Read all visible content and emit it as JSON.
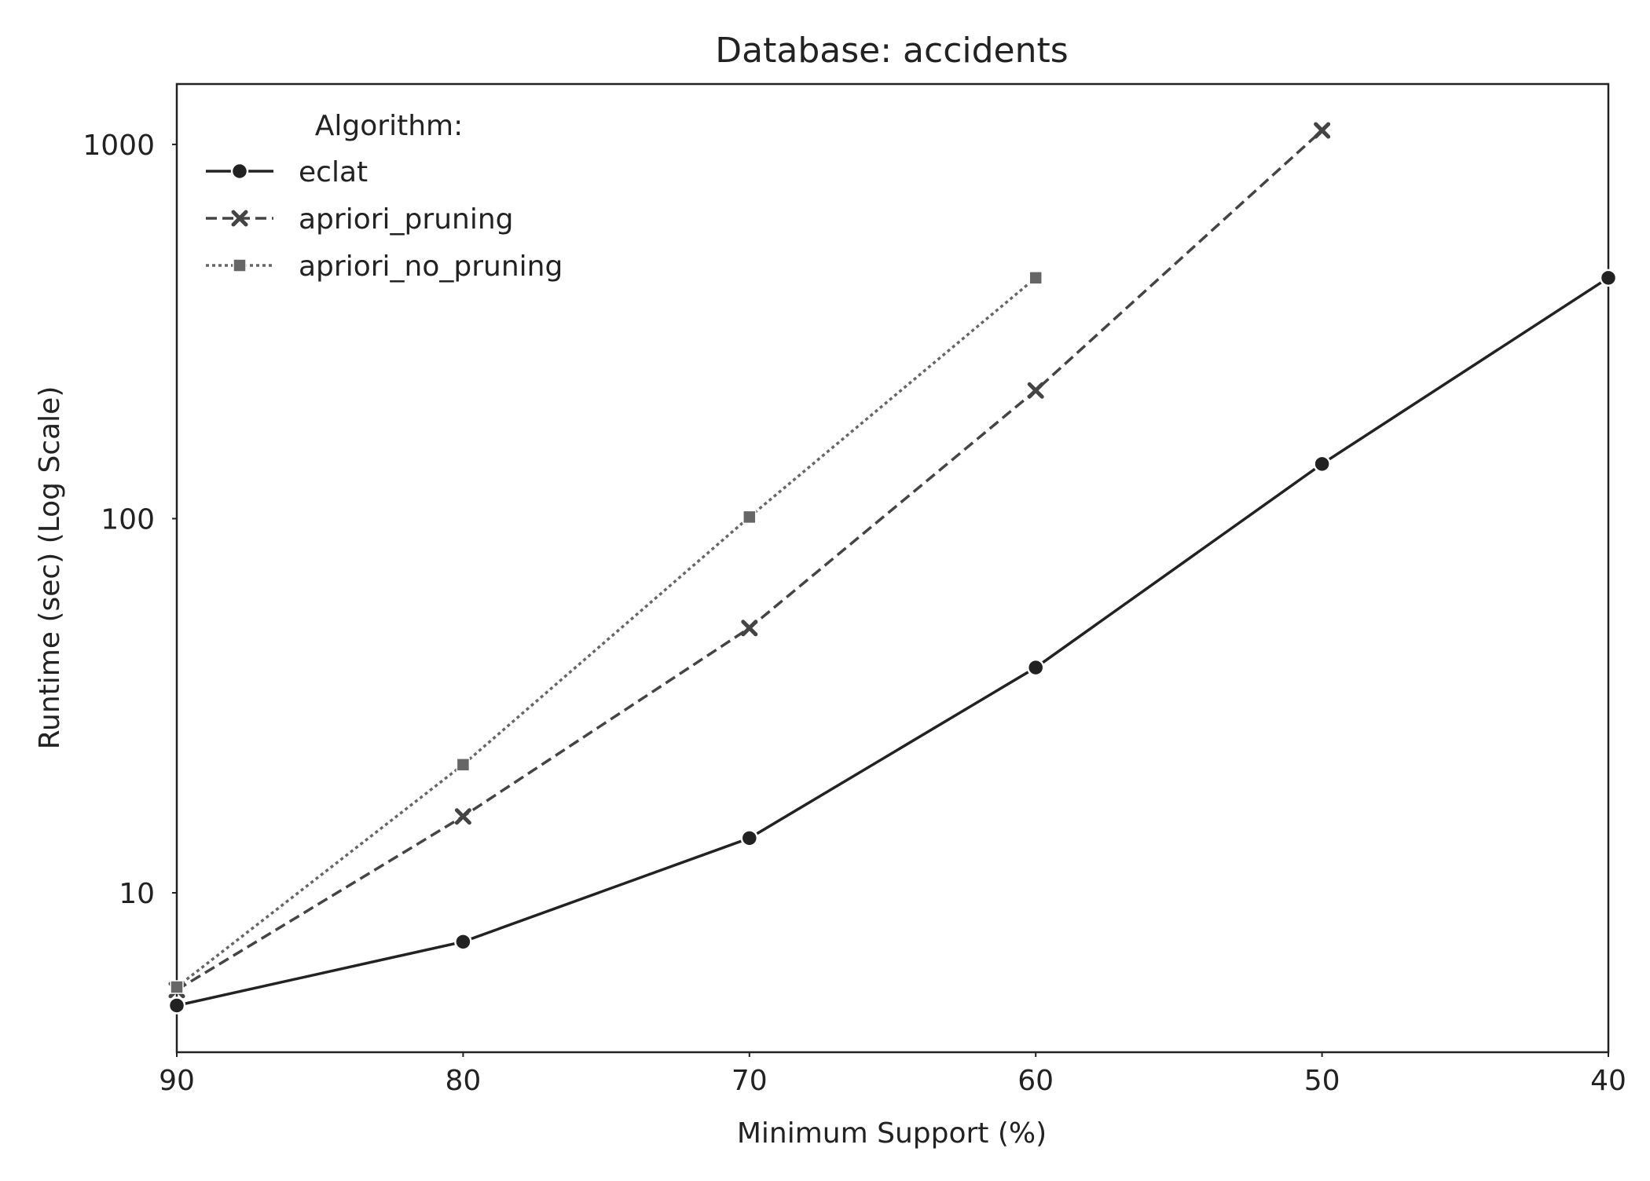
{
  "chart_data": {
    "type": "line",
    "title": "Database: accidents",
    "xlabel": "Minimum Support (%)",
    "ylabel": "Runtime (sec) (Log Scale)",
    "x_ticks": [
      90,
      80,
      70,
      60,
      50,
      40
    ],
    "y_ticks": [
      10,
      100,
      1000
    ],
    "xlim": [
      90,
      40
    ],
    "ylim": [
      3.75,
      1450
    ],
    "yscale": "log",
    "grid": false,
    "legend": {
      "title": "Algorithm:",
      "placement": "upper-left"
    },
    "series": [
      {
        "name": "eclat",
        "x": [
          90,
          80,
          70,
          60,
          50,
          40
        ],
        "y": [
          5.0,
          7.4,
          14,
          40,
          140,
          440
        ],
        "color": "#222222",
        "line_style": "solid",
        "marker": "circle"
      },
      {
        "name": "apriori_pruning",
        "x": [
          90,
          80,
          70,
          60,
          50
        ],
        "y": [
          5.5,
          16,
          51,
          220,
          1090
        ],
        "color": "#444444",
        "line_style": "dashed",
        "marker": "x"
      },
      {
        "name": "apriori_no_pruning",
        "x": [
          90,
          80,
          70,
          60
        ],
        "y": [
          5.6,
          22,
          101,
          440
        ],
        "color": "#666666",
        "line_style": "dotted",
        "marker": "square"
      }
    ]
  }
}
